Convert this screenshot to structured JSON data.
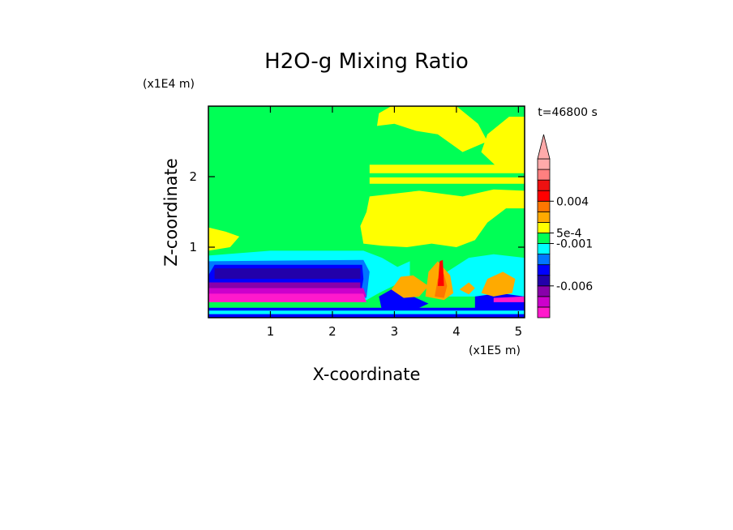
{
  "chart_data": {
    "type": "heatmap",
    "title": "H2O-g Mixing Ratio",
    "xlabel": "X-coordinate",
    "ylabel": "Z-coordinate",
    "x_unit": "(x1E5 m)",
    "y_unit": "(x1E4 m)",
    "time_label": "t=46800 s",
    "xlim": [
      0,
      5.1
    ],
    "ylim": [
      0,
      3.0
    ],
    "x_ticks": [
      1,
      2,
      3,
      4,
      5
    ],
    "y_ticks": [
      1,
      2
    ],
    "colorbar": {
      "colors": [
        "#ff19cc",
        "#cc00cc",
        "#8800aa",
        "#2200aa",
        "#0000ff",
        "#0077ff",
        "#00ffff",
        "#00ff55",
        "#ffff00",
        "#ffaa00",
        "#ff7700",
        "#ff0000",
        "#ee1111",
        "#ff8080",
        "#ffaaaa"
      ],
      "labels": [
        "0.004",
        "5e-4",
        "-0.001",
        "-0.006"
      ],
      "extend": "max"
    },
    "regions": [
      {
        "color": "#00ff55",
        "poly": [
          [
            0,
            0
          ],
          [
            5.1,
            0
          ],
          [
            5.1,
            3
          ],
          [
            0,
            3
          ]
        ]
      },
      {
        "color": "#ffff00",
        "poly": [
          [
            2.72,
            2.72
          ],
          [
            2.75,
            2.9
          ],
          [
            2.95,
            3.0
          ],
          [
            4.0,
            3.0
          ],
          [
            4.35,
            2.75
          ],
          [
            4.5,
            2.5
          ],
          [
            4.1,
            2.35
          ],
          [
            3.7,
            2.6
          ],
          [
            3.35,
            2.65
          ],
          [
            3.0,
            2.75
          ]
        ]
      },
      {
        "color": "#ffff00",
        "poly": [
          [
            4.4,
            2.35
          ],
          [
            4.5,
            2.6
          ],
          [
            4.85,
            2.85
          ],
          [
            5.1,
            2.85
          ],
          [
            5.1,
            2.05
          ],
          [
            4.7,
            2.1
          ]
        ]
      },
      {
        "color": "#ffff00",
        "poly": [
          [
            2.6,
            2.17
          ],
          [
            5.1,
            2.17
          ],
          [
            5.1,
            2.05
          ],
          [
            2.6,
            2.05
          ]
        ]
      },
      {
        "color": "#ffff00",
        "poly": [
          [
            2.6,
            1.99
          ],
          [
            5.1,
            1.99
          ],
          [
            5.1,
            1.9
          ],
          [
            2.6,
            1.9
          ]
        ]
      },
      {
        "color": "#ffff00",
        "poly": [
          [
            2.6,
            1.72
          ],
          [
            3.4,
            1.8
          ],
          [
            4.1,
            1.72
          ],
          [
            4.6,
            1.82
          ],
          [
            5.1,
            1.8
          ],
          [
            5.1,
            1.55
          ],
          [
            4.8,
            1.55
          ],
          [
            4.5,
            1.35
          ],
          [
            4.3,
            1.1
          ],
          [
            4.0,
            1.0
          ],
          [
            3.6,
            1.05
          ],
          [
            3.2,
            1.0
          ],
          [
            2.8,
            1.02
          ],
          [
            2.5,
            1.05
          ],
          [
            2.45,
            1.3
          ],
          [
            2.55,
            1.5
          ]
        ]
      },
      {
        "color": "#ffff00",
        "poly": [
          [
            0,
            1.28
          ],
          [
            0.28,
            1.22
          ],
          [
            0.5,
            1.15
          ],
          [
            0.35,
            1.0
          ],
          [
            0,
            0.95
          ]
        ]
      },
      {
        "color": "#00ffff",
        "poly": [
          [
            0,
            0.88
          ],
          [
            1.0,
            0.95
          ],
          [
            2.5,
            0.95
          ],
          [
            2.8,
            0.85
          ],
          [
            3.05,
            0.72
          ],
          [
            3.25,
            0.8
          ],
          [
            3.25,
            0.55
          ],
          [
            3.05,
            0.48
          ],
          [
            2.75,
            0.35
          ],
          [
            2.55,
            0.25
          ],
          [
            0,
            0.25
          ]
        ]
      },
      {
        "color": "#00ffff",
        "poly": [
          [
            3.85,
            0.65
          ],
          [
            4.2,
            0.85
          ],
          [
            4.6,
            0.9
          ],
          [
            5.1,
            0.85
          ],
          [
            5.1,
            0.3
          ],
          [
            3.85,
            0.3
          ]
        ]
      },
      {
        "color": "#0077ff",
        "poly": [
          [
            0,
            0.8
          ],
          [
            2.5,
            0.82
          ],
          [
            2.6,
            0.65
          ],
          [
            2.55,
            0.28
          ],
          [
            0,
            0.28
          ]
        ]
      },
      {
        "color": "#0000ff",
        "poly": [
          [
            0.1,
            0.75
          ],
          [
            2.48,
            0.75
          ],
          [
            2.5,
            0.55
          ],
          [
            2.45,
            0.3
          ],
          [
            0,
            0.3
          ],
          [
            0,
            0.6
          ]
        ]
      },
      {
        "color": "#2200aa",
        "poly": [
          [
            0.1,
            0.7
          ],
          [
            2.45,
            0.7
          ],
          [
            2.45,
            0.55
          ],
          [
            0.1,
            0.55
          ]
        ]
      },
      {
        "color": "#8800aa",
        "poly": [
          [
            0,
            0.5
          ],
          [
            2.45,
            0.5
          ],
          [
            2.45,
            0.32
          ],
          [
            0,
            0.32
          ]
        ]
      },
      {
        "color": "#cc00cc",
        "poly": [
          [
            0,
            0.42
          ],
          [
            2.5,
            0.42
          ],
          [
            2.55,
            0.3
          ],
          [
            0,
            0.3
          ]
        ]
      },
      {
        "color": "#ff19cc",
        "poly": [
          [
            0,
            0.34
          ],
          [
            2.5,
            0.34
          ],
          [
            2.55,
            0.22
          ],
          [
            0,
            0.22
          ]
        ]
      },
      {
        "color": "#0000ff",
        "poly": [
          [
            0,
            0.14
          ],
          [
            5.1,
            0.14
          ],
          [
            5.1,
            0
          ],
          [
            0,
            0
          ]
        ]
      },
      {
        "color": "#0000ff",
        "poly": [
          [
            2.75,
            0.3
          ],
          [
            3.05,
            0.45
          ],
          [
            3.3,
            0.3
          ],
          [
            3.55,
            0.2
          ],
          [
            3.3,
            0.1
          ],
          [
            2.8,
            0.1
          ]
        ]
      },
      {
        "color": "#0000ff",
        "poly": [
          [
            4.3,
            0.3
          ],
          [
            4.7,
            0.35
          ],
          [
            5.1,
            0.3
          ],
          [
            5.1,
            0.12
          ],
          [
            4.3,
            0.12
          ]
        ]
      },
      {
        "color": "#ffaa00",
        "poly": [
          [
            2.95,
            0.4
          ],
          [
            3.1,
            0.58
          ],
          [
            3.3,
            0.6
          ],
          [
            3.55,
            0.45
          ],
          [
            3.4,
            0.3
          ],
          [
            3.15,
            0.28
          ]
        ]
      },
      {
        "color": "#ffaa00",
        "poly": [
          [
            3.5,
            0.3
          ],
          [
            3.55,
            0.65
          ],
          [
            3.7,
            0.8
          ],
          [
            3.9,
            0.6
          ],
          [
            3.95,
            0.35
          ],
          [
            3.8,
            0.25
          ]
        ]
      },
      {
        "color": "#ffaa00",
        "poly": [
          [
            4.4,
            0.35
          ],
          [
            4.5,
            0.55
          ],
          [
            4.75,
            0.65
          ],
          [
            4.95,
            0.55
          ],
          [
            4.9,
            0.35
          ],
          [
            4.6,
            0.3
          ]
        ]
      },
      {
        "color": "#ffaa00",
        "poly": [
          [
            4.05,
            0.4
          ],
          [
            4.2,
            0.5
          ],
          [
            4.3,
            0.42
          ],
          [
            4.2,
            0.33
          ]
        ]
      },
      {
        "color": "#ff7700",
        "poly": [
          [
            3.65,
            0.3
          ],
          [
            3.7,
            0.55
          ],
          [
            3.8,
            0.62
          ],
          [
            3.85,
            0.45
          ],
          [
            3.8,
            0.28
          ]
        ]
      },
      {
        "color": "#ff0000",
        "poly": [
          [
            3.7,
            0.45
          ],
          [
            3.73,
            0.8
          ],
          [
            3.78,
            0.82
          ],
          [
            3.8,
            0.45
          ]
        ]
      },
      {
        "color": "#ff19cc",
        "poly": [
          [
            4.6,
            0.28
          ],
          [
            5.1,
            0.3
          ],
          [
            5.1,
            0.22
          ],
          [
            4.6,
            0.22
          ]
        ]
      },
      {
        "color": "#00ffff",
        "poly": [
          [
            0,
            0.1
          ],
          [
            5.1,
            0.1
          ],
          [
            5.1,
            0.05
          ],
          [
            0,
            0.05
          ]
        ]
      }
    ]
  }
}
